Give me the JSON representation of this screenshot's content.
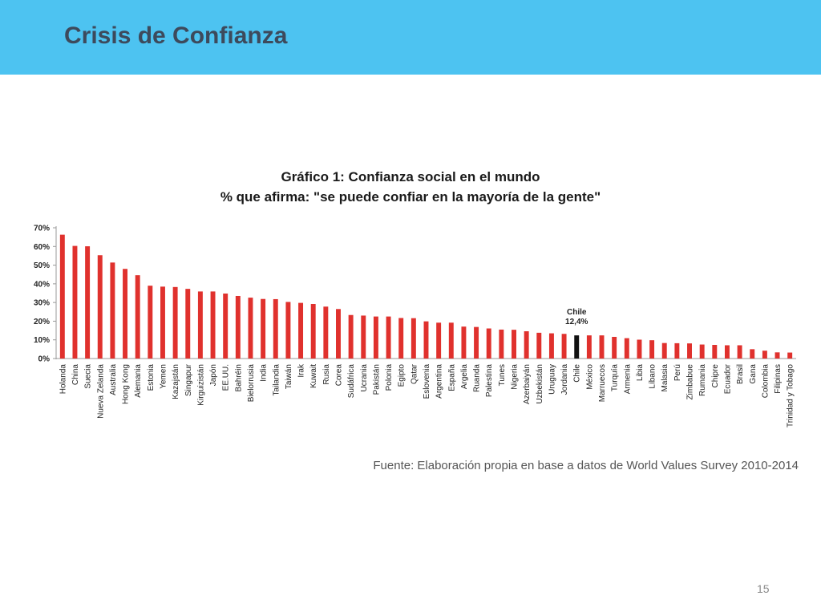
{
  "slide": {
    "title": "Crisis de Confianza",
    "page_number": "15"
  },
  "colors": {
    "header": "#4dc3f1",
    "bar": "#e0312d",
    "highlight_bar": "#111111"
  },
  "chart_data": {
    "type": "bar",
    "title": "Gráfico 1: Confianza social en el mundo",
    "subtitle": "% que afirma: \"se puede confiar en la mayoría de la gente\"",
    "source": "Fuente: Elaboración propia en base a datos de World Values Survey 2010-2014",
    "ylim": [
      0,
      70
    ],
    "yticks": [
      "0%",
      "10%",
      "20%",
      "30%",
      "40%",
      "50%",
      "60%",
      "70%"
    ],
    "grid": false,
    "annotation": {
      "category": "Chile",
      "label": "Chile",
      "value_label": "12,4%"
    },
    "categories": [
      "Holanda",
      "China",
      "Suecia",
      "Nueva Zelanda",
      "Australia",
      "Hong Kong",
      "Alemania",
      "Estonia",
      "Yemen",
      "Kazajstán",
      "Singapur",
      "Kirguizistán",
      "Japón",
      "EE.UU.",
      "Bahréin",
      "Bielorrusia",
      "India",
      "Tailandia",
      "Taiwán",
      "Irak",
      "Kuwait",
      "Rusia",
      "Corea",
      "Sudáfrica",
      "Ucrania",
      "Pakistán",
      "Polonia",
      "Egipto",
      "Qatar",
      "Eslovenia",
      "Argentina",
      "España",
      "Argelia",
      "Ruanda",
      "Palestina",
      "Tunes",
      "Nigeria",
      "Azerbaiyán",
      "Uzbekistán",
      "Uruguay",
      "Jordania",
      "Chile",
      "México",
      "Marruecos",
      "Turquía",
      "Armenia",
      "Libia",
      "Líbano",
      "Malasia",
      "Perú",
      "Zimbabue",
      "Rumania",
      "Chipre",
      "Ecuador",
      "Brasil",
      "Gana",
      "Colombia",
      "Filipinas",
      "Trinidad y Tobago"
    ],
    "values": [
      66.3,
      60.3,
      60.1,
      55.3,
      51.4,
      48.0,
      44.6,
      39.0,
      38.5,
      38.3,
      37.3,
      35.9,
      35.9,
      34.8,
      33.5,
      32.6,
      31.9,
      31.8,
      30.3,
      29.8,
      29.2,
      27.8,
      26.5,
      23.3,
      23.0,
      22.5,
      22.5,
      21.7,
      21.6,
      19.9,
      19.2,
      19.2,
      17.1,
      16.9,
      16.1,
      15.5,
      15.4,
      14.6,
      13.8,
      13.5,
      13.2,
      12.4,
      12.4,
      12.4,
      11.6,
      10.9,
      10.1,
      9.8,
      8.3,
      8.2,
      8.1,
      7.5,
      7.3,
      7.1,
      7.1,
      5.0,
      4.2,
      3.3,
      3.2
    ]
  }
}
